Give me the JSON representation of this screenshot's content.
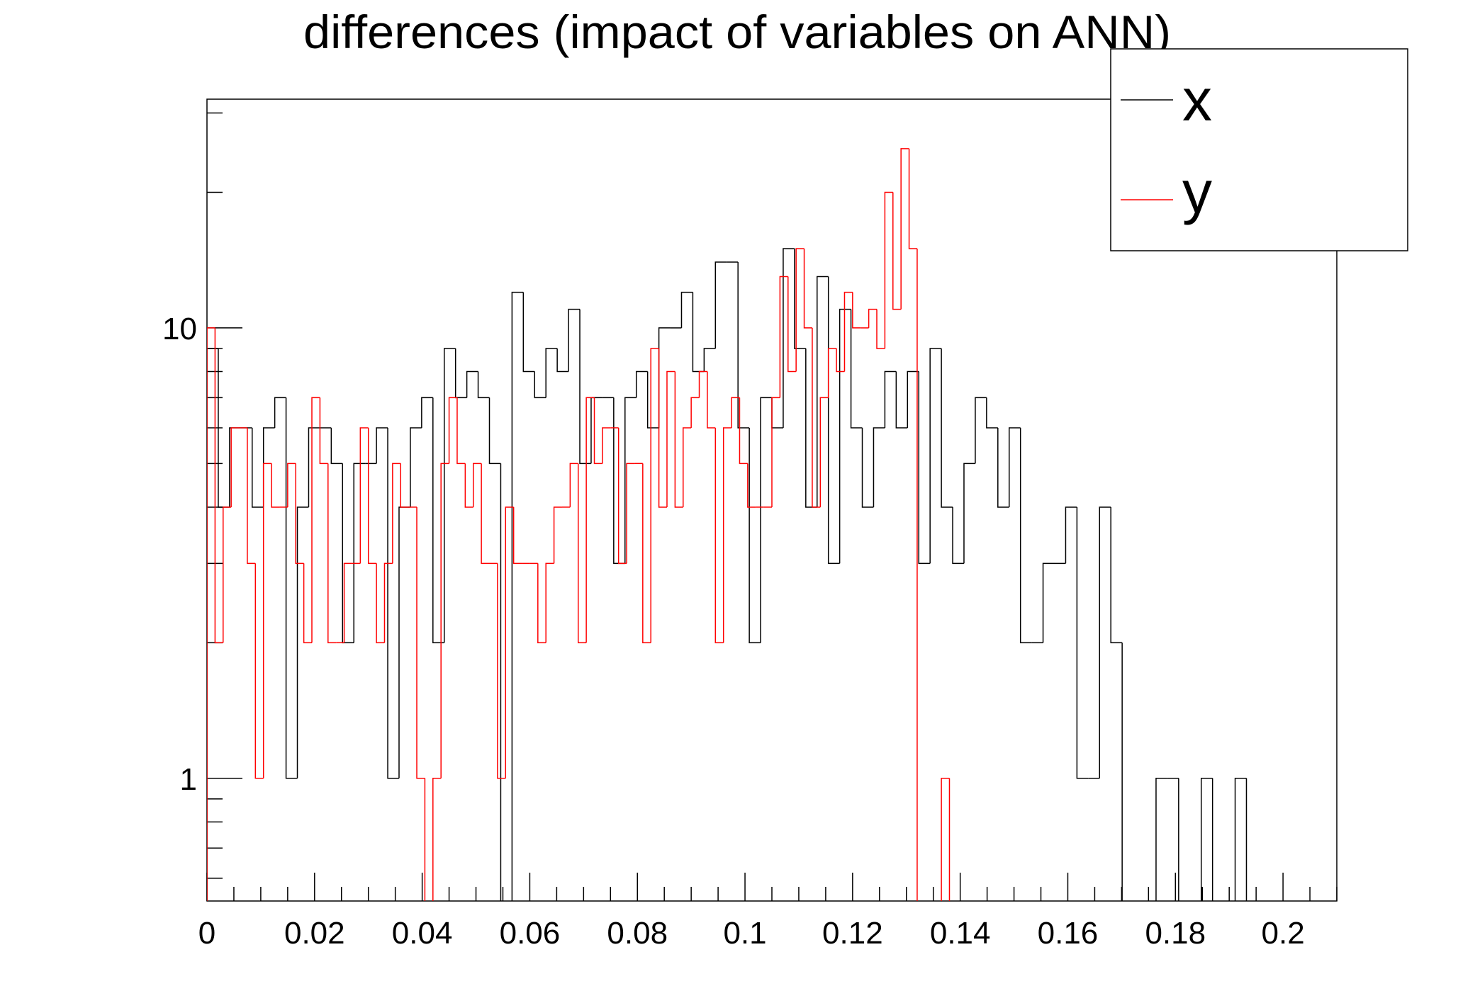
{
  "chart_data": {
    "type": "histogram-step",
    "title": "differences (impact of variables on ANN)",
    "xlabel": "",
    "ylabel": "",
    "xlim": [
      0,
      0.21
    ],
    "ylim": [
      0.534,
      32.2
    ],
    "yscale": "log",
    "grid": false,
    "legend_position": "top-right",
    "x_tick_labels": [
      "0",
      "0.02",
      "0.04",
      "0.06",
      "0.08",
      "0.1",
      "0.12",
      "0.14",
      "0.16",
      "0.18",
      "0.2"
    ],
    "x_tick_values": [
      0,
      0.02,
      0.04,
      0.06,
      0.08,
      0.1,
      0.12,
      0.14,
      0.16,
      0.18,
      0.2
    ],
    "y_tick_labels": [
      "1",
      "10"
    ],
    "y_tick_values": [
      1,
      10
    ],
    "series": [
      {
        "name": "x",
        "color": "#000000",
        "bin_start": 0,
        "bin_width": 0.0021,
        "values": [
          9,
          4,
          6,
          6,
          4,
          6,
          7,
          1,
          4,
          6,
          6,
          5,
          2,
          5,
          5,
          6,
          1,
          4,
          6,
          7,
          2,
          9,
          7,
          8,
          7,
          5,
          0,
          12,
          8,
          7,
          9,
          8,
          11,
          5,
          7,
          7,
          3,
          7,
          8,
          6,
          10,
          10,
          12,
          8,
          9,
          14,
          14,
          6,
          2,
          7,
          6,
          15,
          9,
          4,
          13,
          3,
          11,
          6,
          4,
          6,
          8,
          6,
          8,
          3,
          9,
          4,
          3,
          5,
          7,
          6,
          4,
          6,
          2,
          2,
          3,
          3,
          4,
          1,
          1,
          4,
          2,
          0,
          0,
          0,
          1,
          1,
          0,
          0,
          1,
          0,
          0,
          1,
          0,
          0,
          0,
          0,
          0,
          0,
          0,
          0
        ]
      },
      {
        "name": "y",
        "color": "#ff0000",
        "bin_start": 0,
        "bin_width": 0.0015,
        "values": [
          10,
          2,
          4,
          6,
          6,
          3,
          1,
          5,
          4,
          4,
          5,
          3,
          2,
          7,
          5,
          2,
          2,
          3,
          3,
          6,
          3,
          2,
          3,
          5,
          4,
          4,
          1,
          0,
          1,
          5,
          7,
          5,
          4,
          5,
          3,
          3,
          1,
          4,
          3,
          3,
          3,
          2,
          3,
          4,
          4,
          5,
          2,
          7,
          5,
          6,
          6,
          3,
          5,
          5,
          2,
          9,
          4,
          8,
          4,
          6,
          7,
          8,
          6,
          2,
          6,
          7,
          5,
          4,
          4,
          4,
          7,
          13,
          8,
          15,
          10,
          4,
          7,
          9,
          8,
          12,
          10,
          10,
          11,
          9,
          20,
          11,
          25,
          15,
          0,
          0,
          0,
          1,
          0,
          0,
          0,
          0,
          0,
          0,
          0,
          0,
          0,
          0,
          0,
          0,
          0,
          0,
          0,
          0,
          0,
          0,
          0,
          0,
          0,
          0,
          0,
          0,
          0,
          0,
          0,
          0,
          0,
          0,
          0,
          0,
          0,
          0,
          0,
          0,
          0,
          0,
          0,
          0,
          0,
          0,
          0,
          0
        ]
      }
    ]
  }
}
